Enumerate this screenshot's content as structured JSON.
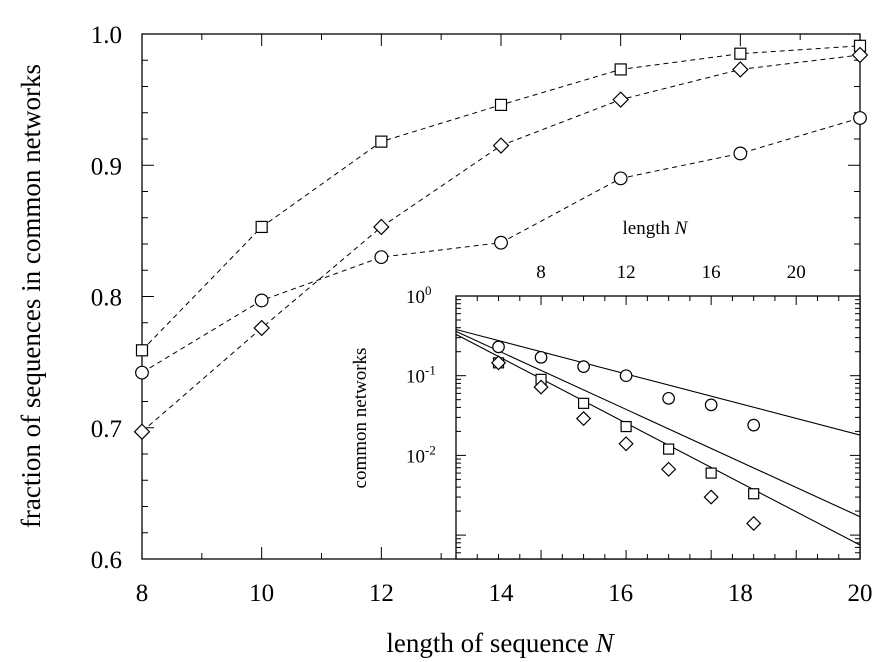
{
  "chart_data": [
    {
      "type": "line",
      "title": "",
      "xlabel": "length of sequence ",
      "xlabel_var": "N",
      "ylabel": "fraction of sequences in common networks",
      "xlim": [
        8,
        20
      ],
      "ylim": [
        0.6,
        1.0
      ],
      "xticks": [
        "8",
        "10",
        "12",
        "14",
        "16",
        "18",
        "20"
      ],
      "yticks": [
        "0.6",
        "0.7",
        "0.8",
        "0.9",
        "1.0"
      ],
      "line_style": "dashed",
      "series": [
        {
          "marker": "square",
          "x": [
            8,
            10,
            12,
            14,
            16,
            18,
            20
          ],
          "y": [
            0.759,
            0.853,
            0.918,
            0.946,
            0.973,
            0.985,
            0.991
          ]
        },
        {
          "marker": "diamond",
          "x": [
            8,
            10,
            12,
            14,
            16,
            18,
            20
          ],
          "y": [
            0.697,
            0.776,
            0.853,
            0.915,
            0.95,
            0.973,
            0.984
          ]
        },
        {
          "marker": "circle",
          "x": [
            8,
            10,
            12,
            14,
            16,
            18,
            20
          ],
          "y": [
            0.742,
            0.797,
            0.83,
            0.841,
            0.89,
            0.909,
            0.936
          ]
        }
      ]
    },
    {
      "type": "scatter",
      "inset": true,
      "title": "",
      "xlabel": "length ",
      "xlabel_var": "N",
      "ylabel": "common networks",
      "xlim": [
        4,
        23
      ],
      "ylim_log10": [
        -3.3,
        0
      ],
      "y_scale": "log",
      "xticks": [
        "8",
        "12",
        "16",
        "20"
      ],
      "yticks": [
        {
          "base": "10",
          "exp": "0",
          "value": 1
        },
        {
          "base": "10",
          "exp": "-1",
          "value": 0.1
        },
        {
          "base": "10",
          "exp": "-2",
          "value": 0.01
        }
      ],
      "series": [
        {
          "marker": "circle",
          "x": [
            6,
            8,
            10,
            12,
            14,
            16,
            18
          ],
          "y": [
            0.23,
            0.17,
            0.13,
            0.1,
            0.052,
            0.043,
            0.024
          ],
          "fit": {
            "x": [
              4,
              23
            ],
            "y": [
              0.38,
              0.018
            ]
          }
        },
        {
          "marker": "square",
          "x": [
            6,
            8,
            10,
            12,
            14,
            16,
            18
          ],
          "y": [
            0.145,
            0.09,
            0.045,
            0.023,
            0.012,
            0.006,
            0.0033
          ],
          "fit": {
            "x": [
              4,
              23
            ],
            "y": [
              0.36,
              0.0017
            ]
          }
        },
        {
          "marker": "diamond",
          "x": [
            6,
            8,
            10,
            12,
            14,
            16,
            18
          ],
          "y": [
            0.145,
            0.072,
            0.029,
            0.014,
            0.0067,
            0.003,
            0.0014
          ],
          "fit": {
            "x": [
              4,
              23
            ],
            "y": [
              0.33,
              0.00075
            ]
          }
        }
      ]
    }
  ]
}
